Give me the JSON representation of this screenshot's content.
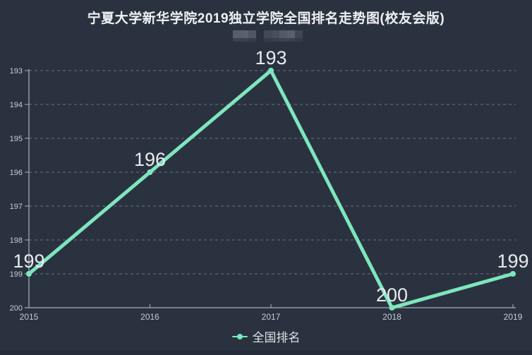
{
  "page": {
    "title": "宁夏大学新华学院2019独立学院全国排名走势图(校友会版)"
  },
  "colors": {
    "background": "#2b323f",
    "line": "#7de6bd",
    "axis": "#a9b0b8",
    "grid": "#7e8794",
    "tick_text": "#c6ccd3",
    "value_text": "#e8ebee",
    "title_text": "#eef1f4",
    "legend_text": "#dce0e5",
    "footer_bar": "#262d3a"
  },
  "legend": {
    "label": "全国排名"
  },
  "chart_data": {
    "type": "line",
    "title": "宁夏大学新华学院2019独立学院全国排名走势图(校友会版)",
    "categories": [
      "2015",
      "2016",
      "2017",
      "2018",
      "2019"
    ],
    "series": [
      {
        "name": "全国排名",
        "values": [
          199,
          196,
          193,
          200,
          199
        ]
      }
    ],
    "xlabel": "",
    "ylabel": "",
    "ylim": [
      193,
      200
    ],
    "y_inverted": true,
    "yticks": [
      193,
      194,
      195,
      196,
      197,
      198,
      199,
      200
    ],
    "grid": "horizontal dashed",
    "legend_position": "bottom",
    "data_labels": true
  }
}
